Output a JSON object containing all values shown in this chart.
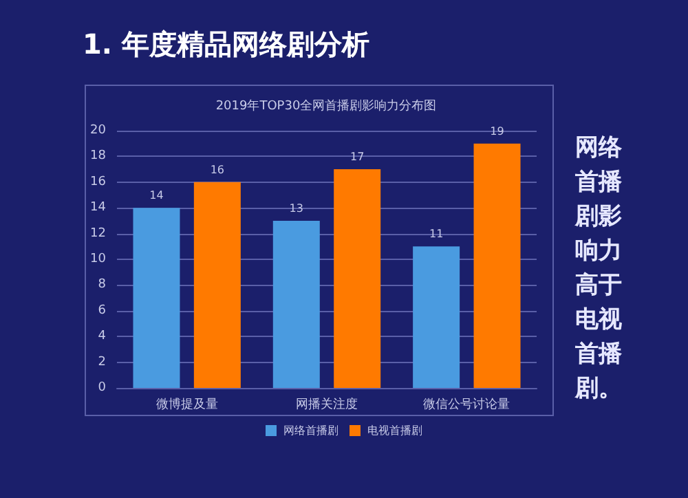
{
  "chart_data": {
    "type": "bar",
    "title": "2019年TOP30全网首播剧影响力分布图",
    "annotations": [
      "1. 年度精品网络剧分析",
      "网络首播剧影响力高于电视首播剧。"
    ],
    "categories": [
      "微博提及量",
      "网播关注度",
      "微信公号讨论量"
    ],
    "series": [
      {
        "name": "网络首播剧",
        "color": "#4a9be0",
        "values": [
          14,
          13,
          11
        ]
      },
      {
        "name": "电视首播剧",
        "color": "#ff7a00",
        "values": [
          16,
          17,
          19
        ]
      }
    ],
    "ylim": [
      0,
      20
    ],
    "yticks": [
      0,
      2,
      4,
      6,
      8,
      10,
      12,
      14,
      16,
      18,
      20
    ],
    "grid": "y",
    "legend": "bottom",
    "data_labels": true
  }
}
